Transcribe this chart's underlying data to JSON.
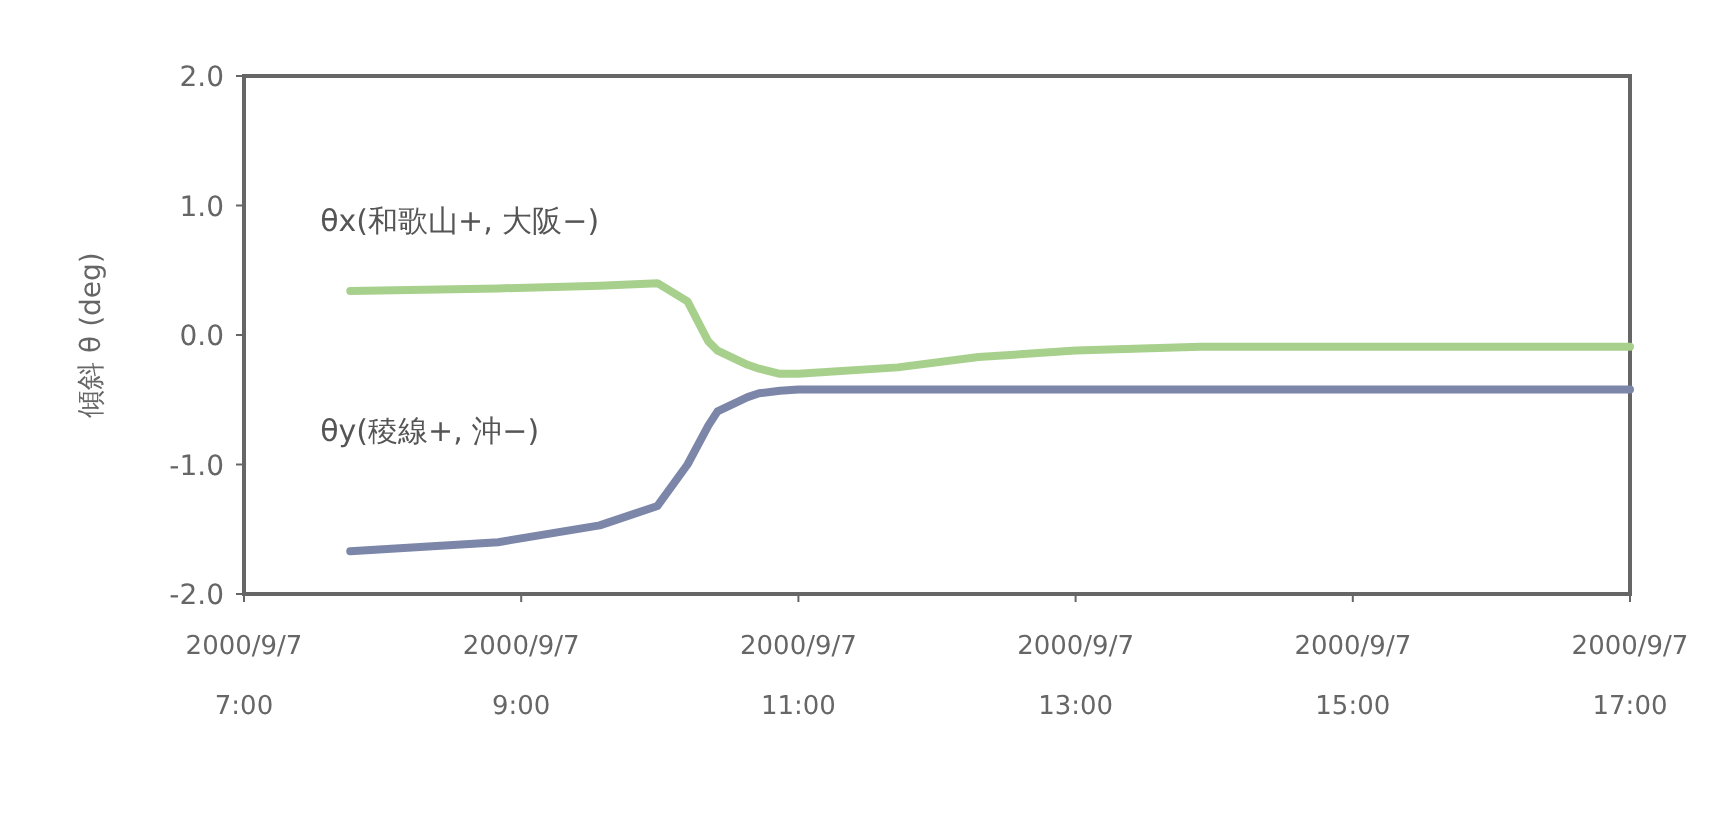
{
  "chart_data": {
    "type": "line",
    "ylabel": "傾斜 θ (deg)",
    "x": [
      "2000-09-07T07:46",
      "2000-09-07T08:50",
      "2000-09-07T09:34",
      "2000-09-07T09:59",
      "2000-09-07T10:12",
      "2000-09-07T10:21",
      "2000-09-07T10:25",
      "2000-09-07T10:38",
      "2000-09-07T10:43",
      "2000-09-07T10:52",
      "2000-09-07T11:00",
      "2000-09-07T11:43",
      "2000-09-07T12:18",
      "2000-09-07T13:00",
      "2000-09-07T13:54",
      "2000-09-07T17:00"
    ],
    "series": [
      {
        "name": "θx(和歌山+, 大阪−)",
        "color": "#a8d08d",
        "values": [
          0.34,
          0.36,
          0.38,
          0.4,
          0.26,
          -0.05,
          -0.12,
          -0.23,
          -0.26,
          -0.3,
          -0.3,
          -0.25,
          -0.17,
          -0.12,
          -0.09,
          -0.09
        ]
      },
      {
        "name": "θy(稜線+, 沖−)",
        "color": "#7b86a8",
        "values": [
          -1.67,
          -1.6,
          -1.47,
          -1.32,
          -1.0,
          -0.7,
          -0.59,
          -0.48,
          -0.45,
          -0.43,
          -0.42,
          -0.42,
          -0.42,
          -0.42,
          -0.42,
          -0.42
        ]
      }
    ],
    "xlim": [
      "2000-09-07T07:00",
      "2000-09-07T17:00"
    ],
    "xticks": [
      {
        "value": "2000-09-07T07:00",
        "label": "2000/9/7\n7:00"
      },
      {
        "value": "2000-09-07T09:00",
        "label": "2000/9/7\n9:00"
      },
      {
        "value": "2000-09-07T11:00",
        "label": "2000/9/7\n11:00"
      },
      {
        "value": "2000-09-07T13:00",
        "label": "2000/9/7\n13:00"
      },
      {
        "value": "2000-09-07T15:00",
        "label": "2000/9/7\n15:00"
      },
      {
        "value": "2000-09-07T17:00",
        "label": "2000/9/7\n17:00"
      }
    ],
    "ylim": [
      -2,
      2
    ],
    "yticks": [
      {
        "value": 2,
        "label": "2.0"
      },
      {
        "value": 1,
        "label": "1.0"
      },
      {
        "value": 0,
        "label": "0.0"
      },
      {
        "value": -1,
        "label": "-1.0"
      },
      {
        "value": -2,
        "label": "-2.0"
      }
    ],
    "grid": false,
    "legend": false,
    "marker": "none",
    "line_style": "solid"
  }
}
